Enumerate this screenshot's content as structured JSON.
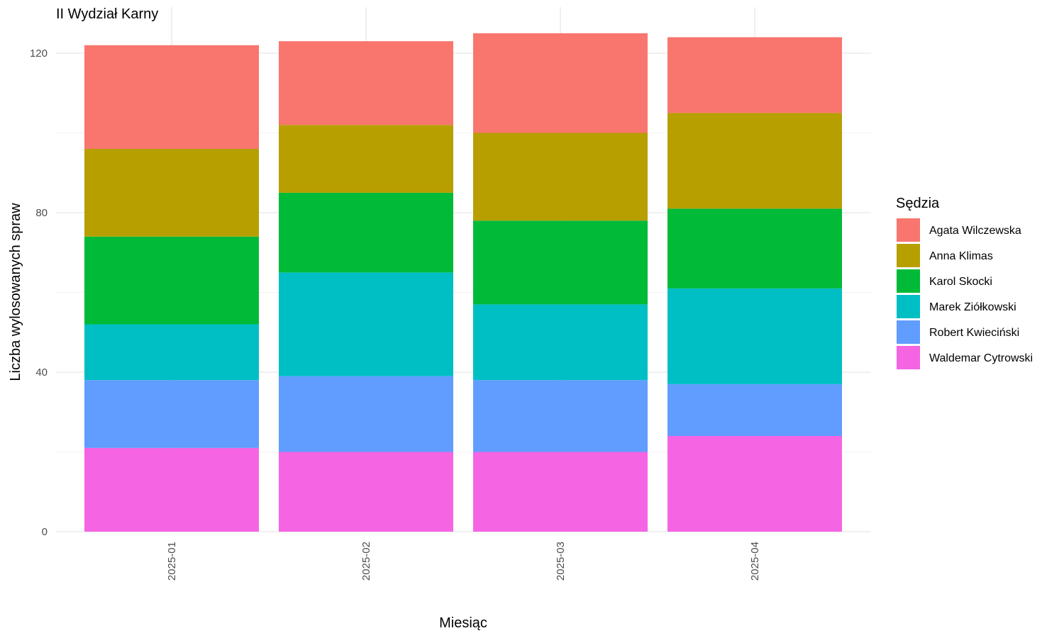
{
  "chart_data": {
    "type": "bar",
    "stacked": true,
    "title": "II Wydział Karny",
    "xlabel": "Miesiąc",
    "ylabel": "Liczba wylosowanych spraw",
    "categories": [
      "2025-01",
      "2025-02",
      "2025-03",
      "2025-04"
    ],
    "ylim": [
      0,
      125
    ],
    "yticks": [
      0,
      40,
      80,
      120
    ],
    "grid": true,
    "legend_title": "Sędzia",
    "legend_position": "right",
    "series": [
      {
        "name": "Agata Wilczewska",
        "color": "#F8766D",
        "values": [
          26,
          21,
          25,
          19
        ]
      },
      {
        "name": "Anna Klimas",
        "color": "#B79F00",
        "values": [
          22,
          17,
          22,
          24
        ]
      },
      {
        "name": "Karol Skocki",
        "color": "#00BA38",
        "values": [
          22,
          20,
          21,
          20
        ]
      },
      {
        "name": "Marek Ziółkowski",
        "color": "#00BFC4",
        "values": [
          14,
          26,
          19,
          24
        ]
      },
      {
        "name": "Robert Kwieciński",
        "color": "#619CFF",
        "values": [
          17,
          19,
          18,
          13
        ]
      },
      {
        "name": "Waldemar Cytrowski",
        "color": "#F564E3",
        "values": [
          21,
          20,
          20,
          24
        ]
      }
    ]
  }
}
